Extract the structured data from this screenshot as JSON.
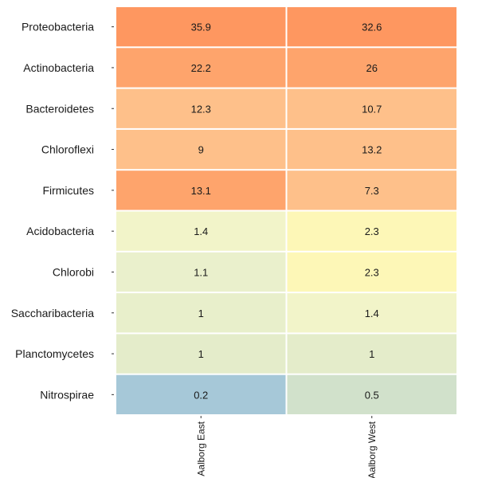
{
  "chart_data": {
    "type": "heatmap",
    "title": "",
    "xlabel": "",
    "ylabel": "",
    "columns": [
      "Aalborg East",
      "Aalborg West"
    ],
    "rows": [
      "Proteobacteria",
      "Actinobacteria",
      "Bacteroidetes",
      "Chloroflexi",
      "Firmicutes",
      "Acidobacteria",
      "Chlorobi",
      "Saccharibacteria",
      "Planctomycetes",
      "Nitrospirae"
    ],
    "values": [
      [
        35.9,
        32.6
      ],
      [
        22.2,
        26
      ],
      [
        12.3,
        10.7
      ],
      [
        9,
        13.2
      ],
      [
        13.1,
        7.3
      ],
      [
        1.4,
        2.3
      ],
      [
        1.1,
        2.3
      ],
      [
        1,
        1.4
      ],
      [
        1,
        1
      ],
      [
        0.2,
        0.5
      ]
    ],
    "cell_colors": [
      [
        "#fe9760",
        "#fe9760"
      ],
      [
        "#fea46c",
        "#fea46c"
      ],
      [
        "#fec08a",
        "#fec08a"
      ],
      [
        "#fec08a",
        "#fec08a"
      ],
      [
        "#fea46c",
        "#fec08a"
      ],
      [
        "#f2f4c9",
        "#fdf7b7"
      ],
      [
        "#eaf0cc",
        "#fdf7b7"
      ],
      [
        "#e8efcb",
        "#f2f4c9"
      ],
      [
        "#e4ecca",
        "#e4ecca"
      ],
      [
        "#a6c8d8",
        "#d1e1cb"
      ]
    ]
  }
}
